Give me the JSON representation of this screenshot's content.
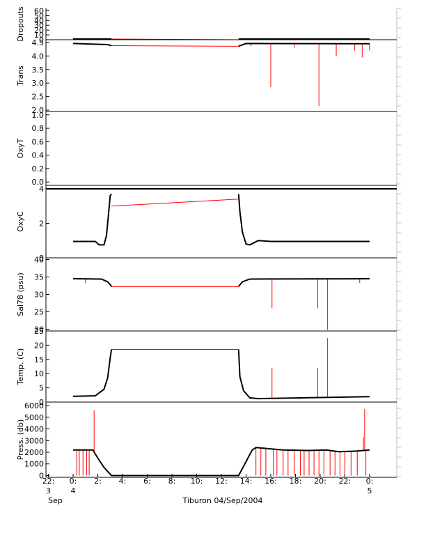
{
  "chart_data": {
    "type": "line",
    "title": "Tiburon 04/Sep/2004",
    "colors": {
      "data": "#000000",
      "gap": "#ff0000",
      "axis": "#000000",
      "frame": "#c0c0c0"
    },
    "x_axis": {
      "ticks": [
        {
          "hour": -2,
          "top": "22:",
          "mid": "3",
          "bottom": "Sep"
        },
        {
          "hour": 0,
          "top": "0:",
          "mid": "4",
          "bottom": ""
        },
        {
          "hour": 2,
          "top": "2:",
          "mid": "",
          "bottom": ""
        },
        {
          "hour": 4,
          "top": "4:",
          "mid": "",
          "bottom": ""
        },
        {
          "hour": 6,
          "top": "6:",
          "mid": "",
          "bottom": ""
        },
        {
          "hour": 8,
          "top": "8:",
          "mid": "",
          "bottom": ""
        },
        {
          "hour": 10,
          "top": "10:",
          "mid": "",
          "bottom": ""
        },
        {
          "hour": 12,
          "top": "12:",
          "mid": "",
          "bottom": ""
        },
        {
          "hour": 14,
          "top": "14:",
          "mid": "",
          "bottom": ""
        },
        {
          "hour": 16,
          "top": "16:",
          "mid": "",
          "bottom": ""
        },
        {
          "hour": 18,
          "top": "18:",
          "mid": "",
          "bottom": ""
        },
        {
          "hour": 20,
          "top": "20:",
          "mid": "",
          "bottom": ""
        },
        {
          "hour": 22,
          "top": "22:",
          "mid": "",
          "bottom": ""
        },
        {
          "hour": 24,
          "top": "0:",
          "mid": "5",
          "bottom": ""
        }
      ],
      "range_hours": [
        -2.2,
        26.2
      ]
    },
    "panels": [
      {
        "name": "dropouts",
        "ylabel": "Dropouts",
        "ylim": [
          0,
          65
        ],
        "ticks": [
          "0",
          "10",
          "20",
          "30",
          "40",
          "50",
          "60"
        ],
        "tick_values": [
          0,
          10,
          20,
          30,
          40,
          50,
          60
        ],
        "series": [
          {
            "points": [
              [
                0,
                1.5
              ],
              [
                3.1,
                1.5
              ]
            ]
          },
          {
            "points": [
              [
                13.4,
                1.5
              ],
              [
                24,
                1.5
              ]
            ]
          }
        ],
        "gaps": [
          [
            [
              3.1,
              1.5
            ],
            [
              13.4,
              -5
            ]
          ]
        ],
        "spikes": []
      },
      {
        "name": "trans",
        "ylabel": "Trans",
        "ylim": [
          1.95,
          4.6
        ],
        "ticks": [
          "2.0",
          "2.5",
          "3.0",
          "3.5",
          "4.0",
          "4.5"
        ],
        "tick_values": [
          2.0,
          2.5,
          3.0,
          3.5,
          4.0,
          4.5
        ],
        "series": [
          {
            "points": [
              [
                0,
                4.46
              ],
              [
                2.8,
                4.42
              ],
              [
                3.1,
                4.38
              ]
            ]
          },
          {
            "points": [
              [
                13.4,
                4.36
              ],
              [
                14.0,
                4.46
              ],
              [
                24,
                4.45
              ]
            ]
          }
        ],
        "gaps": [
          [
            [
              3.1,
              4.38
            ],
            [
              13.4,
              4.36
            ]
          ]
        ],
        "spikes": [
          [
            16.0,
            2.85
          ],
          [
            19.9,
            2.15
          ],
          [
            21.3,
            4.0
          ],
          [
            23.4,
            3.95
          ],
          [
            24.0,
            4.2
          ],
          [
            22.8,
            4.2
          ],
          [
            17.9,
            4.3
          ],
          [
            14.4,
            4.35
          ]
        ]
      },
      {
        "name": "oxyt",
        "ylabel": "OxyT",
        "ylim": [
          -0.05,
          1.05
        ],
        "ticks": [
          "0.0",
          "0.2",
          "0.4",
          "0.6",
          "0.8",
          "1.0"
        ],
        "tick_values": [
          0.0,
          0.2,
          0.4,
          0.6,
          0.8,
          1.0
        ],
        "series": [],
        "gaps": [],
        "spikes": []
      },
      {
        "name": "oxyc",
        "ylabel": "OxyC",
        "ylim": [
          0,
          4.2
        ],
        "ticks": [
          "0",
          "2",
          "4"
        ],
        "tick_values": [
          0,
          2,
          4
        ],
        "series": [
          {
            "points": [
              [
                0,
                0.95
              ],
              [
                1.8,
                0.95
              ],
              [
                2.1,
                0.75
              ],
              [
                2.5,
                0.75
              ],
              [
                2.7,
                1.3
              ],
              [
                2.85,
                2.4
              ],
              [
                3.0,
                3.6
              ],
              [
                3.1,
                3.7
              ]
            ]
          },
          {
            "points": [
              [
                13.4,
                3.7
              ],
              [
                13.5,
                2.7
              ],
              [
                13.7,
                1.5
              ],
              [
                14.0,
                0.8
              ],
              [
                14.3,
                0.75
              ],
              [
                15.0,
                1.0
              ],
              [
                16.0,
                0.95
              ],
              [
                24,
                0.95
              ]
            ]
          },
          {
            "points": [
              [
                -2.2,
                4.0
              ],
              [
                26.2,
                4.0
              ]
            ]
          }
        ],
        "gaps": [
          [
            [
              3.1,
              3.0
            ],
            [
              13.4,
              3.4
            ]
          ]
        ],
        "spikes": []
      },
      {
        "name": "salinity",
        "ylabel": "Sal78 (psu)",
        "ylim": [
          19.5,
          40.5
        ],
        "ticks": [
          "20",
          "25",
          "30",
          "35",
          "40"
        ],
        "tick_values": [
          20,
          25,
          30,
          35,
          40
        ],
        "series": [
          {
            "points": [
              [
                0,
                34.5
              ],
              [
                2.3,
                34.4
              ],
              [
                2.8,
                33.6
              ],
              [
                3.0,
                32.8
              ],
              [
                3.1,
                32.3
              ]
            ]
          },
          {
            "points": [
              [
                13.4,
                32.3
              ],
              [
                13.7,
                33.6
              ],
              [
                14.3,
                34.4
              ],
              [
                24,
                34.5
              ]
            ]
          }
        ],
        "gaps": [
          [
            [
              3.1,
              32.2
            ],
            [
              13.4,
              32.2
            ]
          ]
        ],
        "spikes": [
          [
            16.1,
            26.0
          ],
          [
            19.8,
            26.0
          ],
          [
            20.6,
            19.8
          ],
          [
            1.0,
            33.2
          ],
          [
            23.2,
            33.3
          ]
        ]
      },
      {
        "name": "temperature",
        "ylabel": "Temp. (C)",
        "ylim": [
          0,
          25
        ],
        "ticks": [
          "0",
          "5",
          "10",
          "15",
          "20",
          "25"
        ],
        "tick_values": [
          0,
          5,
          10,
          15,
          20,
          25
        ],
        "series": [
          {
            "points": [
              [
                0,
                2.0
              ],
              [
                1.8,
                2.2
              ],
              [
                2.5,
                4.5
              ],
              [
                2.8,
                8.5
              ],
              [
                3.0,
                15.5
              ],
              [
                3.1,
                18.5
              ]
            ]
          },
          {
            "points": [
              [
                13.4,
                18.5
              ],
              [
                13.5,
                9.0
              ],
              [
                13.8,
                4.0
              ],
              [
                14.3,
                1.5
              ],
              [
                15.0,
                1.2
              ],
              [
                16.0,
                1.3
              ],
              [
                24,
                1.9
              ]
            ]
          }
        ],
        "gaps": [
          [
            [
              3.1,
              18.5
            ],
            [
              13.4,
              18.5
            ]
          ]
        ],
        "spikes": [
          [
            16.1,
            12.0
          ],
          [
            19.8,
            12.0
          ],
          [
            20.6,
            22.5
          ],
          [
            15.8,
            1.0
          ],
          [
            18.3,
            1.0
          ]
        ]
      },
      {
        "name": "pressure",
        "ylabel": "Press. (db)",
        "ylim": [
          -150,
          6300
        ],
        "ticks": [
          "0",
          "1000",
          "2000",
          "3000",
          "4000",
          "5000",
          "6000"
        ],
        "tick_values": [
          0,
          1000,
          2000,
          3000,
          4000,
          5000,
          6000
        ],
        "series": [
          {
            "points": [
              [
                0,
                2200
              ],
              [
                1.6,
                2200
              ],
              [
                2.0,
                1500
              ],
              [
                2.5,
                700
              ],
              [
                3.1,
                0
              ],
              [
                13.4,
                0
              ],
              [
                14.5,
                2200
              ],
              [
                14.8,
                2400
              ],
              [
                17.0,
                2200
              ],
              [
                19.0,
                2150
              ],
              [
                20.5,
                2200
              ],
              [
                21.5,
                2050
              ],
              [
                23.0,
                2100
              ],
              [
                24.0,
                2200
              ]
            ]
          }
        ],
        "gaps": [],
        "spikes": [
          [
            1.7,
            5600
          ],
          [
            23.6,
            5700
          ],
          [
            23.5,
            3300
          ],
          [
            0.3,
            0
          ],
          [
            0.5,
            0
          ],
          [
            0.8,
            0
          ],
          [
            1.1,
            0
          ],
          [
            1.3,
            0
          ],
          [
            14.8,
            0
          ],
          [
            15.2,
            0
          ],
          [
            15.6,
            0
          ],
          [
            16.2,
            0
          ],
          [
            16.5,
            0
          ],
          [
            17.0,
            0
          ],
          [
            17.4,
            0
          ],
          [
            17.9,
            0
          ],
          [
            18.4,
            0
          ],
          [
            18.7,
            0
          ],
          [
            19.1,
            0
          ],
          [
            19.5,
            0
          ],
          [
            19.9,
            0
          ],
          [
            20.3,
            0
          ],
          [
            20.8,
            0
          ],
          [
            21.2,
            0
          ],
          [
            21.6,
            0
          ],
          [
            22.0,
            0
          ],
          [
            22.5,
            0
          ],
          [
            23.0,
            0
          ],
          [
            23.7,
            0
          ]
        ]
      }
    ]
  }
}
